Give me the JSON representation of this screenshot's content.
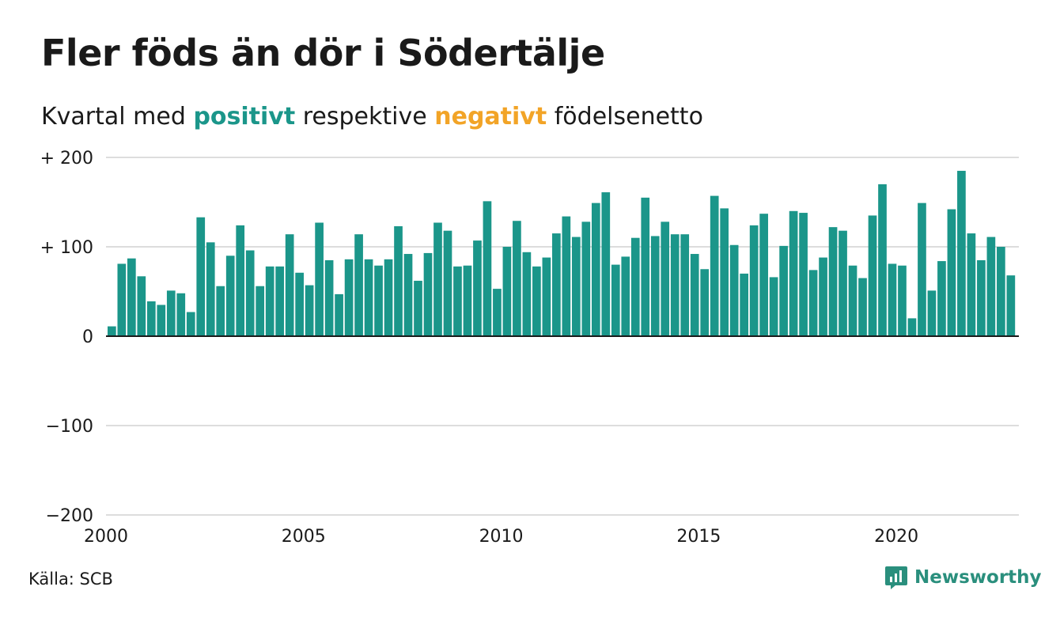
{
  "title": "Fler föds än dör i Södertälje",
  "subtitle": {
    "before": "Kvartal med",
    "positive": "positivt",
    "middle": "respektive",
    "negative": "negativt",
    "after": "födelsenetto"
  },
  "source": "Källa: SCB",
  "brand": {
    "name": "Newsworthy",
    "icon": "newsworthy-chart-icon"
  },
  "colors": {
    "positive": "#1b968a",
    "negative": "#f2a427",
    "brand": "#2a8f7d",
    "grid": "#dddddd",
    "text": "#1a1a1a"
  },
  "chart_data": {
    "type": "bar",
    "xlabel": "",
    "ylabel": "",
    "ylim": [
      -200,
      200
    ],
    "xlim": [
      2000,
      2023.1
    ],
    "grid": true,
    "y_ticks": [
      {
        "value": 200,
        "label": "+ 200"
      },
      {
        "value": 100,
        "label": "+ 100"
      },
      {
        "value": 0,
        "label": "0"
      },
      {
        "value": -100,
        "label": "−100"
      },
      {
        "value": -200,
        "label": "−200"
      }
    ],
    "x_ticks": [
      {
        "value": 2000,
        "label": "2000"
      },
      {
        "value": 2005,
        "label": "2005"
      },
      {
        "value": 2010,
        "label": "2010"
      },
      {
        "value": 2015,
        "label": "2015"
      },
      {
        "value": 2020,
        "label": "2020"
      }
    ],
    "start_period": "2000 Q1",
    "period": "quarter",
    "values": [
      11,
      81,
      87,
      67,
      39,
      35,
      51,
      48,
      27,
      133,
      105,
      56,
      90,
      124,
      96,
      56,
      78,
      78,
      114,
      71,
      57,
      127,
      85,
      47,
      86,
      114,
      86,
      79,
      86,
      123,
      92,
      62,
      93,
      127,
      118,
      78,
      79,
      107,
      151,
      53,
      100,
      129,
      94,
      78,
      88,
      115,
      134,
      111,
      128,
      149,
      161,
      80,
      89,
      110,
      155,
      112,
      128,
      114,
      114,
      92,
      75,
      157,
      143,
      102,
      70,
      124,
      137,
      66,
      101,
      140,
      138,
      74,
      88,
      122,
      118,
      79,
      65,
      135,
      170,
      81,
      79,
      20,
      149,
      51,
      84,
      142,
      185,
      115,
      85,
      111,
      100,
      68
    ]
  }
}
